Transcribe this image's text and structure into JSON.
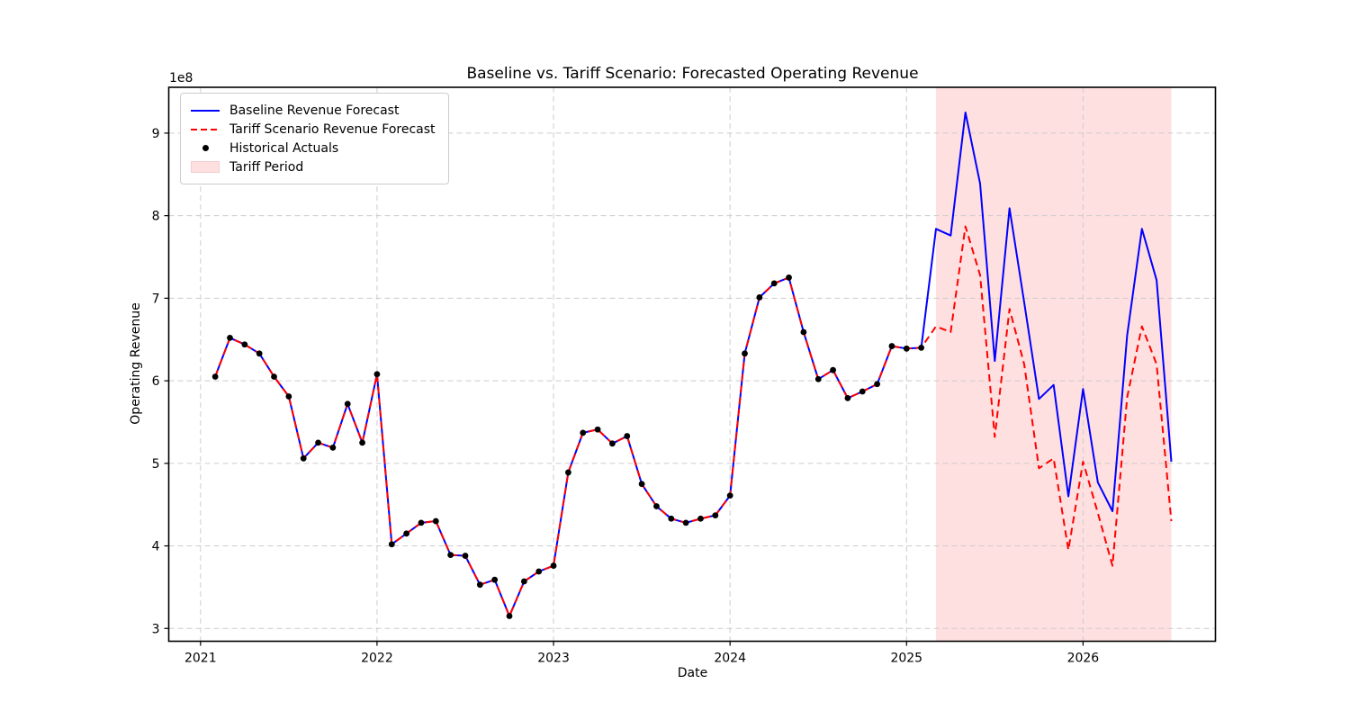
{
  "title": "Baseline vs. Tariff Scenario: Forecasted Operating Revenue",
  "axes": {
    "x_label": "Date",
    "y_label": "Operating Revenue",
    "y_offset_label": "1e8",
    "x_ticks": [
      2021,
      2022,
      2023,
      2024,
      2025,
      2026
    ],
    "y_ticks": [
      3,
      4,
      5,
      6,
      7,
      8,
      9
    ],
    "grid": true
  },
  "legend": {
    "position": "upper-left",
    "items": [
      {
        "label": "Baseline Revenue Forecast",
        "type": "solid-line",
        "color": "#0000ff"
      },
      {
        "label": "Tariff Scenario Revenue Forecast",
        "type": "dashed-line",
        "color": "#ff0000"
      },
      {
        "label": "Historical Actuals",
        "type": "marker",
        "color": "#000000"
      },
      {
        "label": "Tariff Period",
        "type": "patch",
        "color": "#ffe0e0"
      }
    ]
  },
  "chart_data": {
    "type": "line",
    "title": "Baseline vs. Tariff Scenario: Forecasted Operating Revenue",
    "xlabel": "Date",
    "ylabel": "Operating Revenue",
    "values_unit": "1e8",
    "x_range_years": [
      2020.82,
      2026.75
    ],
    "ylim_1e8": [
      2.845,
      9.555
    ],
    "grid": true,
    "legend_position": "upper-left",
    "tariff_period": {
      "start": "2025-02",
      "end": "2026-06",
      "fill": "rgba(255,0,0,0.12)"
    },
    "colors": {
      "baseline": "#0000ff",
      "tariff": "#ff0000",
      "actuals": "#000000",
      "tariff_band": "rgba(255,0,0,0.12)",
      "grid": "#cccccc"
    },
    "series": [
      {
        "name": "Historical Actuals",
        "style": "scatter-black-dots",
        "dates": [
          "2021-01",
          "2021-02",
          "2021-03",
          "2021-04",
          "2021-05",
          "2021-06",
          "2021-07",
          "2021-08",
          "2021-09",
          "2021-10",
          "2021-11",
          "2021-12",
          "2022-01",
          "2022-02",
          "2022-03",
          "2022-04",
          "2022-05",
          "2022-06",
          "2022-07",
          "2022-08",
          "2022-09",
          "2022-10",
          "2022-11",
          "2022-12",
          "2023-01",
          "2023-02",
          "2023-03",
          "2023-04",
          "2023-05",
          "2023-06",
          "2023-07",
          "2023-08",
          "2023-09",
          "2023-10",
          "2023-11",
          "2023-12",
          "2024-01",
          "2024-02",
          "2024-03",
          "2024-04",
          "2024-05",
          "2024-06",
          "2024-07",
          "2024-08",
          "2024-09",
          "2024-10",
          "2024-11",
          "2024-12",
          "2025-01"
        ],
        "values": [
          6.05,
          6.52,
          6.44,
          6.33,
          6.05,
          5.81,
          5.06,
          5.25,
          5.19,
          5.72,
          5.25,
          6.08,
          4.02,
          4.15,
          4.28,
          4.3,
          3.89,
          3.88,
          3.53,
          3.59,
          3.15,
          3.57,
          3.69,
          3.76,
          4.89,
          5.37,
          5.41,
          5.24,
          5.33,
          4.75,
          4.48,
          4.33,
          4.28,
          4.33,
          4.37,
          4.61,
          6.33,
          7.01,
          7.18,
          7.25,
          6.59,
          6.02,
          6.13,
          5.79,
          5.87,
          5.96,
          6.42,
          6.39,
          6.4
        ]
      },
      {
        "name": "Baseline Revenue Forecast",
        "style": "solid-blue",
        "note": "forecast segment; in-sample portion overlaps Historical Actuals",
        "dates": [
          "2025-01",
          "2025-02",
          "2025-03",
          "2025-04",
          "2025-05",
          "2025-06",
          "2025-07",
          "2025-08",
          "2025-09",
          "2025-10",
          "2025-11",
          "2025-12",
          "2026-01",
          "2026-02",
          "2026-03",
          "2026-04",
          "2026-05",
          "2026-06"
        ],
        "values": [
          6.4,
          7.84,
          7.76,
          9.25,
          8.39,
          6.24,
          8.09,
          6.95,
          5.78,
          5.95,
          4.6,
          5.9,
          4.77,
          4.42,
          6.55,
          7.84,
          7.22,
          5.02
        ]
      },
      {
        "name": "Tariff Scenario Revenue Forecast",
        "style": "dashed-red",
        "note": "forecast segment; in-sample portion overlaps Historical Actuals",
        "dates": [
          "2025-01",
          "2025-02",
          "2025-03",
          "2025-04",
          "2025-05",
          "2025-06",
          "2025-07",
          "2025-08",
          "2025-09",
          "2025-10",
          "2025-11",
          "2025-12",
          "2026-01",
          "2026-02",
          "2026-03",
          "2026-04",
          "2026-05",
          "2026-06"
        ],
        "values": [
          6.4,
          6.66,
          6.59,
          7.87,
          7.28,
          5.32,
          6.87,
          6.2,
          4.94,
          5.06,
          3.95,
          5.02,
          4.4,
          3.76,
          5.8,
          6.66,
          6.2,
          4.3
        ]
      }
    ]
  }
}
